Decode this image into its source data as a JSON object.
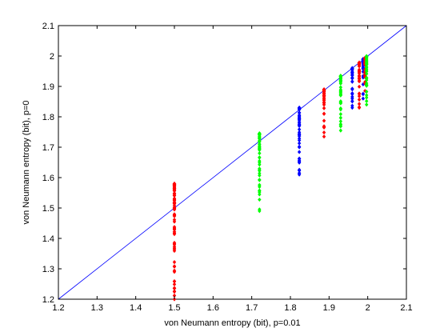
{
  "chart_data": {
    "type": "scatter",
    "xlabel": "von Neumann entropy (bit), p=0.01",
    "ylabel": "von Neumann entropy (bit), p=0",
    "xlim": [
      1.2,
      2.1
    ],
    "ylim": [
      1.2,
      2.1
    ],
    "xticks": [
      "1.2",
      "1.3",
      "1.4",
      "1.5",
      "1.6",
      "1.7",
      "1.8",
      "1.9",
      "2",
      "2.1"
    ],
    "yticks": [
      "1.2",
      "1.3",
      "1.4",
      "1.5",
      "1.6",
      "1.7",
      "1.8",
      "1.9",
      "2",
      "2.1"
    ],
    "grid": false,
    "reference_line": {
      "from": [
        1.2,
        1.2
      ],
      "to": [
        2.1,
        2.1
      ],
      "color": "#0000ff"
    },
    "colors": {
      "red": "#ff0000",
      "green": "#00ff00",
      "blue": "#0000ff"
    },
    "clusters": [
      {
        "color": "red",
        "x": 1.5,
        "ymin": 1.2,
        "ymax": 1.58
      },
      {
        "color": "green",
        "x": 1.72,
        "ymin": 1.49,
        "ymax": 1.745
      },
      {
        "color": "blue",
        "x": 1.823,
        "ymin": 1.61,
        "ymax": 1.83
      },
      {
        "color": "red",
        "x": 1.887,
        "ymin": 1.735,
        "ymax": 1.89
      },
      {
        "color": "green",
        "x": 1.93,
        "ymin": 1.755,
        "ymax": 1.935
      },
      {
        "color": "blue",
        "x": 1.96,
        "ymin": 1.83,
        "ymax": 1.96
      },
      {
        "color": "red",
        "x": 1.978,
        "ymin": 1.83,
        "ymax": 1.978
      },
      {
        "color": "blue",
        "x": 1.988,
        "ymin": 1.86,
        "ymax": 1.99
      },
      {
        "color": "red",
        "x": 1.993,
        "ymin": 1.885,
        "ymax": 1.994
      },
      {
        "color": "green",
        "x": 1.997,
        "ymin": 1.84,
        "ymax": 1.999
      }
    ]
  }
}
